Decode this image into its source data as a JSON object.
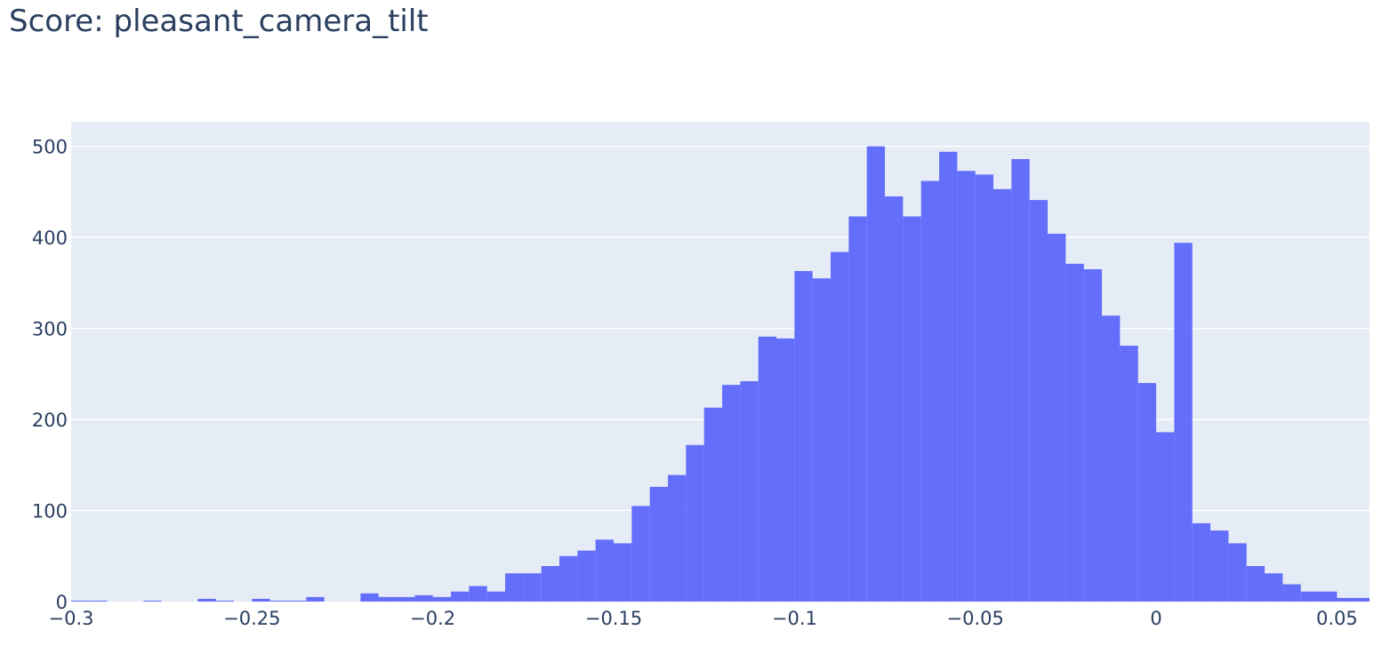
{
  "chart_data": {
    "type": "bar",
    "title": "Score: pleasant_camera_tilt",
    "xlabel": "",
    "ylabel": "",
    "bin_width": 0.005,
    "bin_start": -0.3,
    "xlim": [
      -0.3,
      0.059
    ],
    "ylim": [
      0,
      527
    ],
    "x_ticks": [
      -0.3,
      -0.25,
      -0.2,
      -0.15,
      -0.1,
      -0.05,
      0,
      0.05
    ],
    "x_tick_labels": [
      "−0.3",
      "−0.25",
      "−0.2",
      "−0.15",
      "−0.1",
      "−0.05",
      "0",
      "0.05"
    ],
    "y_ticks": [
      0,
      100,
      200,
      300,
      400,
      500
    ],
    "y_tick_labels": [
      "0",
      "100",
      "200",
      "300",
      "400",
      "500"
    ],
    "grid": true,
    "legend": "none",
    "colors": {
      "bar": "#636efa",
      "plot_bg": "#e5ecf6",
      "grid": "#ffffff",
      "text": "#2a3f5f"
    },
    "values": [
      1,
      1,
      0,
      0,
      1,
      0,
      0,
      3,
      1,
      0,
      3,
      1,
      1,
      5,
      0,
      0,
      9,
      5,
      5,
      7,
      5,
      11,
      17,
      11,
      31,
      31,
      39,
      50,
      56,
      68,
      64,
      105,
      126,
      139,
      172,
      213,
      238,
      242,
      291,
      289,
      363,
      355,
      384,
      423,
      500,
      445,
      423,
      462,
      494,
      473,
      469,
      453,
      486,
      441,
      404,
      371,
      365,
      314,
      281,
      240,
      186,
      394,
      86,
      78,
      64,
      39,
      31,
      19,
      11,
      11,
      4,
      4
    ]
  }
}
